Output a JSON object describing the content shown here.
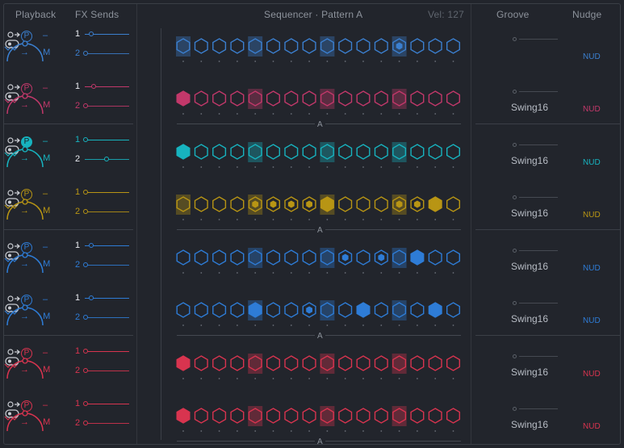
{
  "header": {
    "playback": "Playback",
    "fx_sends": "FX Sends",
    "sequencer_title": "Sequencer · Pattern A",
    "velocity": "Vel: 127",
    "groove": "Groove",
    "nudge": "Nudge"
  },
  "chain_label": "A",
  "tracks": [
    {
      "color": "#3b7fcf",
      "pfilled": false,
      "p": "P",
      "dash": "–",
      "arrow": "→",
      "m": "M",
      "s1": "1",
      "s2": "2",
      "k1": 0.12,
      "k2": 0.0,
      "steps": [
        1,
        0,
        0,
        0,
        1,
        0,
        0,
        0,
        1,
        0,
        0,
        0,
        1,
        0,
        0,
        0
      ],
      "fill": [
        0,
        0,
        0,
        0,
        0,
        0,
        0,
        0,
        0,
        0,
        0,
        0,
        2,
        0,
        0,
        0
      ],
      "swing": "",
      "nud": "NUD"
    },
    {
      "color": "#c2386a",
      "pfilled": false,
      "p": "P",
      "dash": "–",
      "arrow": "→",
      "m": "M",
      "s1": "1",
      "s2": "2",
      "k1": 0.18,
      "k2": 0.0,
      "steps": [
        0,
        0,
        0,
        0,
        1,
        0,
        0,
        0,
        1,
        0,
        0,
        0,
        1,
        0,
        0,
        0
      ],
      "fill": [
        1,
        0,
        0,
        0,
        0,
        0,
        0,
        0,
        0,
        0,
        0,
        0,
        0,
        0,
        0,
        0
      ],
      "swing": "Swing16",
      "nud": "NUD"
    },
    {
      "color": "#17b3bf",
      "pfilled": true,
      "p": "P",
      "dash": "–",
      "arrow": "→",
      "m": "M",
      "s1": "1",
      "s2": "2",
      "k1": 0.0,
      "k2": 0.48,
      "steps": [
        0,
        0,
        0,
        0,
        1,
        0,
        0,
        0,
        1,
        0,
        0,
        0,
        1,
        0,
        0,
        0
      ],
      "fill": [
        1,
        0,
        0,
        0,
        0,
        0,
        0,
        0,
        0,
        0,
        0,
        0,
        0,
        0,
        0,
        0
      ],
      "swing": "Swing16",
      "nud": "NUD"
    },
    {
      "color": "#b89514",
      "pfilled": false,
      "p": "P",
      "dash": "–",
      "arrow": "→",
      "m": "M",
      "s1": "1",
      "s2": "2",
      "k1": 0.0,
      "k2": 0.0,
      "steps": [
        1,
        0,
        0,
        0,
        1,
        0,
        0,
        0,
        1,
        0,
        0,
        0,
        1,
        0,
        0,
        0
      ],
      "fill": [
        0,
        0,
        0,
        0,
        2,
        2,
        2,
        2,
        1,
        0,
        0,
        0,
        2,
        2,
        1,
        0
      ],
      "swing": "Swing16",
      "nud": "NUD"
    },
    {
      "color": "#2e7cd6",
      "pfilled": false,
      "p": "P",
      "dash": "–",
      "arrow": "→",
      "m": "M",
      "s1": "1",
      "s2": "2",
      "k1": 0.12,
      "k2": 0.0,
      "steps": [
        0,
        0,
        0,
        0,
        1,
        0,
        0,
        0,
        1,
        0,
        0,
        0,
        1,
        0,
        0,
        0
      ],
      "fill": [
        0,
        0,
        0,
        0,
        0,
        0,
        0,
        0,
        0,
        2,
        0,
        2,
        0,
        1,
        0,
        0
      ],
      "swing": "Swing16",
      "nud": "NUD"
    },
    {
      "color": "#2e7cd6",
      "pfilled": false,
      "p": "P",
      "dash": "–",
      "arrow": "→",
      "m": "M",
      "s1": "1",
      "s2": "2",
      "k1": 0.12,
      "k2": 0.0,
      "steps": [
        0,
        0,
        0,
        0,
        1,
        0,
        0,
        0,
        1,
        0,
        0,
        0,
        1,
        0,
        0,
        0
      ],
      "fill": [
        0,
        0,
        0,
        0,
        1,
        0,
        0,
        2,
        0,
        0,
        1,
        0,
        0,
        0,
        1,
        0
      ],
      "swing": "Swing16",
      "nud": "NUD"
    },
    {
      "color": "#d8344f",
      "pfilled": false,
      "p": "P",
      "dash": "–",
      "arrow": "→",
      "m": "M",
      "s1": "1",
      "s2": "2",
      "k1": 0.0,
      "k2": 0.0,
      "steps": [
        0,
        0,
        0,
        0,
        1,
        0,
        0,
        0,
        1,
        0,
        0,
        0,
        1,
        0,
        0,
        0
      ],
      "fill": [
        1,
        0,
        0,
        0,
        0,
        0,
        0,
        0,
        0,
        0,
        0,
        0,
        0,
        0,
        0,
        0
      ],
      "swing": "Swing16",
      "nud": "NUD"
    },
    {
      "color": "#d8344f",
      "pfilled": false,
      "p": "P",
      "dash": "–",
      "arrow": "→",
      "m": "M",
      "s1": "1",
      "s2": "2",
      "k1": 0.0,
      "k2": 0.0,
      "steps": [
        0,
        0,
        0,
        0,
        1,
        0,
        0,
        0,
        1,
        0,
        0,
        0,
        1,
        0,
        0,
        0
      ],
      "fill": [
        1,
        0,
        0,
        0,
        0,
        0,
        0,
        0,
        0,
        0,
        0,
        0,
        0,
        0,
        0,
        0
      ],
      "swing": "Swing16",
      "nud": "NUD"
    }
  ]
}
